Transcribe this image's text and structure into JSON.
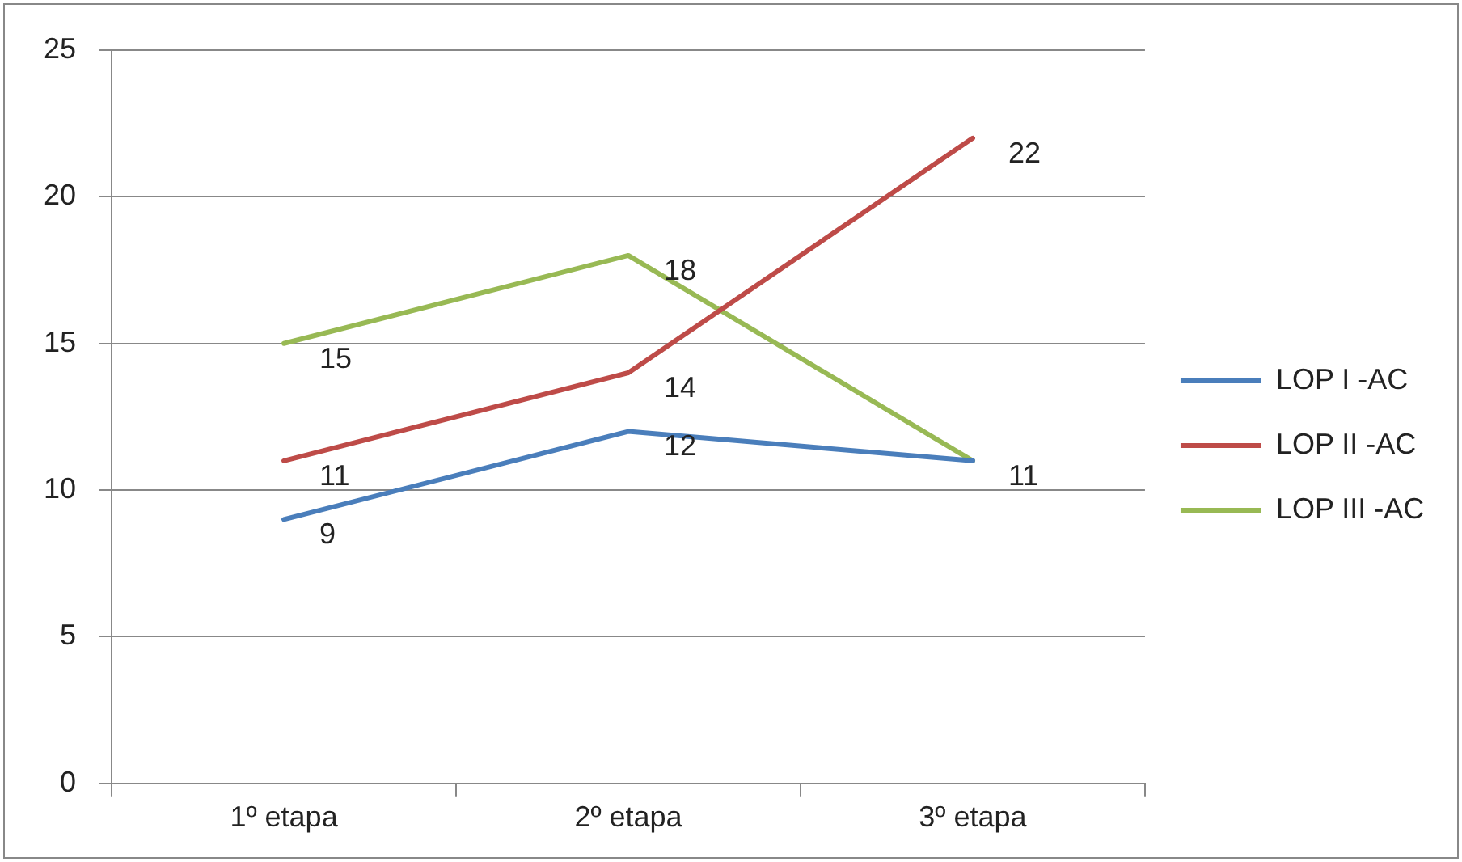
{
  "chart_data": {
    "type": "line",
    "categories": [
      "1º etapa",
      "2º etapa",
      "3º etapa"
    ],
    "series": [
      {
        "name": "LOP I -AC",
        "color": "#4a7ebb",
        "values": [
          9,
          12,
          11
        ],
        "value_labels": [
          "9",
          "12",
          "11"
        ]
      },
      {
        "name": "LOP II -AC",
        "color": "#be4b48",
        "values": [
          11,
          14,
          22
        ],
        "value_labels": [
          "11",
          "14",
          "22"
        ]
      },
      {
        "name": "LOP III -AC",
        "color": "#98b954",
        "values": [
          15,
          18,
          11
        ],
        "value_labels": [
          "15",
          "18",
          null
        ]
      }
    ],
    "ylim": [
      0,
      25
    ],
    "yticks": [
      0,
      5,
      10,
      15,
      20,
      25
    ],
    "grid": "y",
    "legend": "right",
    "marker": "none",
    "line_style": "solid"
  }
}
